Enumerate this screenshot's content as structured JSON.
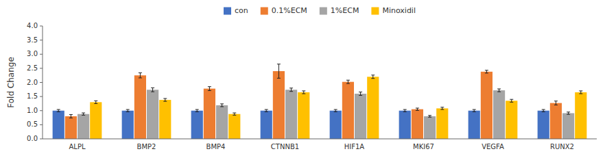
{
  "chart_data": {
    "type": "bar",
    "categories": [
      "ALPL",
      "BMP2",
      "BMP4",
      "CTNNB1",
      "HIF1A",
      "MKI67",
      "VEGFA",
      "RUNX2"
    ],
    "series": [
      {
        "name": "con",
        "color": "#4472C4",
        "values": [
          1.0,
          1.0,
          1.0,
          1.0,
          1.0,
          1.0,
          1.0,
          1.0
        ],
        "errors": [
          0.04,
          0.04,
          0.04,
          0.04,
          0.04,
          0.04,
          0.04,
          0.04
        ]
      },
      {
        "name": "0.1%ECM",
        "color": "#ED7D31",
        "values": [
          0.8,
          2.25,
          1.78,
          2.4,
          2.02,
          1.05,
          2.38,
          1.27
        ],
        "errors": [
          0.06,
          0.09,
          0.07,
          0.25,
          0.06,
          0.04,
          0.05,
          0.07
        ]
      },
      {
        "name": "1%ECM",
        "color": "#A5A5A5",
        "values": [
          0.88,
          1.74,
          1.19,
          1.74,
          1.6,
          0.8,
          1.72,
          0.91
        ],
        "errors": [
          0.04,
          0.07,
          0.05,
          0.06,
          0.06,
          0.03,
          0.05,
          0.04
        ]
      },
      {
        "name": "Minoxidil",
        "color": "#FFC000",
        "values": [
          1.3,
          1.38,
          0.88,
          1.65,
          2.2,
          1.08,
          1.35,
          1.65
        ],
        "errors": [
          0.05,
          0.05,
          0.04,
          0.05,
          0.06,
          0.04,
          0.05,
          0.05
        ]
      }
    ],
    "ylabel": "Fold Change",
    "ylim": [
      0.0,
      4.0
    ],
    "yticks": [
      {
        "value": 0.0,
        "label": "0.0"
      },
      0.5,
      {
        "value": 1.0,
        "label": "1.0"
      },
      1.5,
      {
        "value": 2.0,
        "label": "2.0"
      },
      2.5,
      {
        "value": 3.0,
        "label": "3.0"
      },
      3.5,
      {
        "value": 4.0,
        "label": "4.0"
      }
    ],
    "grid": false,
    "legend": "top"
  }
}
